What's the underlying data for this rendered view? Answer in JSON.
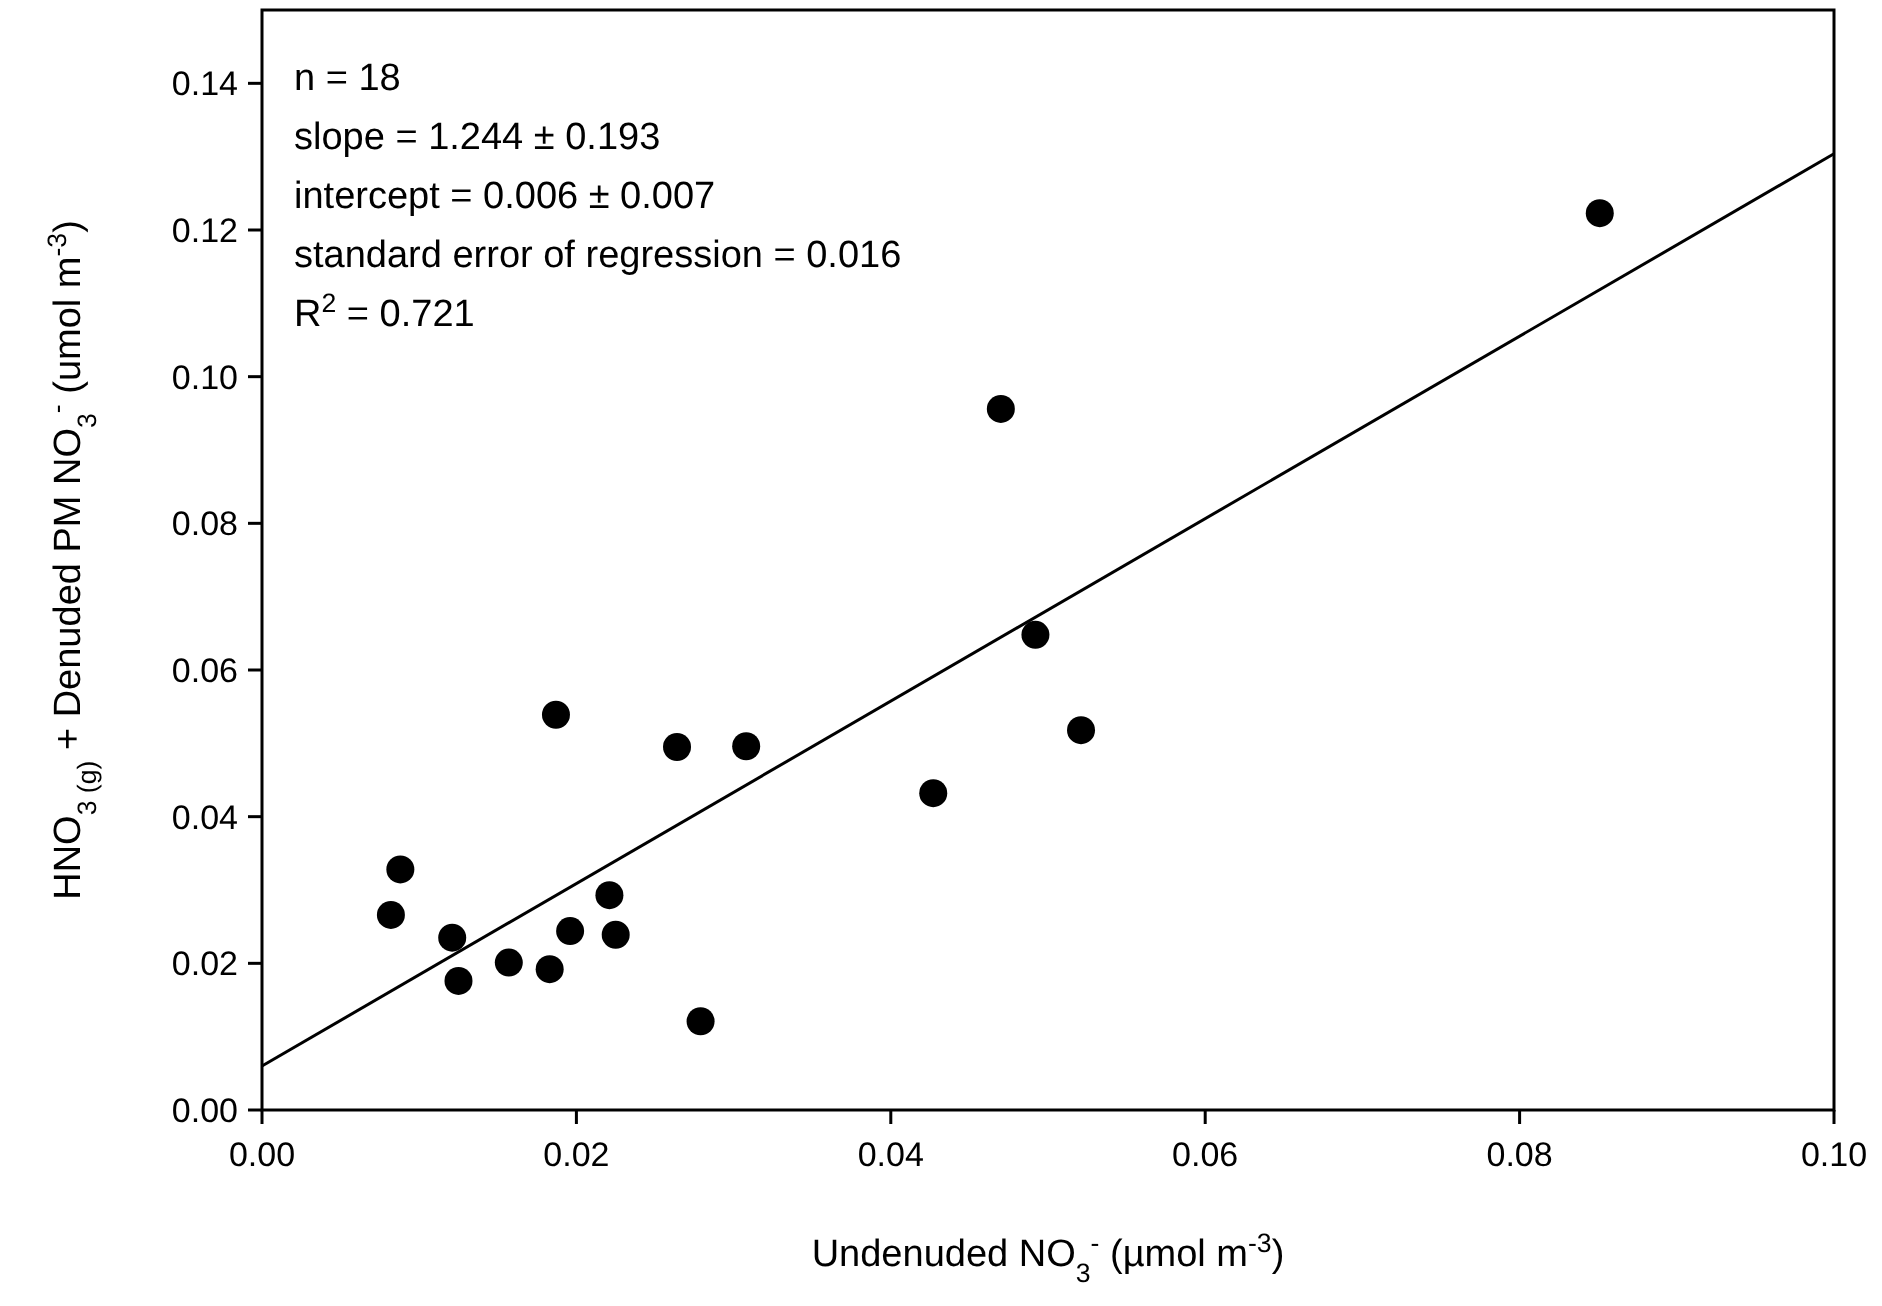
{
  "chart_data": {
    "type": "scatter",
    "xlabel": "Undenuded NO$_{3}$$^{-}$ (µmol m$^{-3}$)",
    "ylabel": "HNO$_{3 (g)}$ + Denuded PM NO$_{3}$$^{-}$ (umol m$^{-3}$)",
    "annotations": [
      "n = 18",
      "slope = 1.244 ± 0.193",
      "intercept = 0.006 ± 0.007",
      "standard error of regression = 0.016",
      "R$^{2}$ = 0.721"
    ],
    "xlim": [
      0,
      0.1
    ],
    "ylim": [
      0,
      0.15
    ],
    "xticks": [
      {
        "value": 0,
        "label": "0.00"
      },
      0.02,
      0.04,
      0.06,
      0.08,
      {
        "value": 0.1,
        "label": "0.10"
      }
    ],
    "yticks": [
      {
        "value": 0,
        "label": "0.00"
      },
      0.02,
      0.04,
      0.06,
      0.08,
      {
        "value": 0.1,
        "label": "0.10"
      },
      0.12,
      0.14
    ],
    "grid": false,
    "series": [
      {
        "marker": "circle",
        "color": "#000000",
        "x": [
          0.0082,
          0.0088,
          0.0121,
          0.0125,
          0.0157,
          0.0183,
          0.0187,
          0.0196,
          0.0221,
          0.0225,
          0.0264,
          0.0279,
          0.0308,
          0.0427,
          0.0521,
          0.047,
          0.0492,
          0.0851
        ],
        "values": [
          0.0266,
          0.0328,
          0.0235,
          0.0176,
          0.0201,
          0.0192,
          0.0539,
          0.0244,
          0.0293,
          0.0239,
          0.0495,
          0.0121,
          0.0496,
          0.0432,
          0.0518,
          0.0956,
          0.0648,
          0.1223
        ]
      },
      {
        "type": "line",
        "line_style": "solid",
        "color": "#000000",
        "x": [
          0,
          0.1
        ],
        "values": [
          0.006,
          0.1304
        ]
      }
    ]
  }
}
